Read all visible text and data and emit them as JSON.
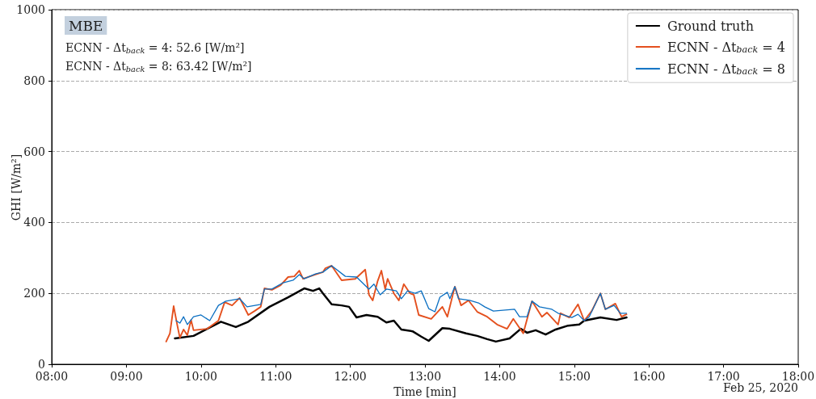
{
  "chart_data": {
    "type": "line",
    "xlabel": "Time [min]",
    "ylabel": "GHI [W/m²]",
    "annotations": [
      "MBE",
      "ECNN - Δt$_{back}$ = 4: 52.6 [W/m²]",
      "ECNN - Δt$_{back}$ = 8: 63.42 [W/m²]",
      "Feb 25, 2020"
    ],
    "xlim": [
      "2020-02-25T08:00",
      "2020-02-25T18:00"
    ],
    "xticks": [
      {
        "value": "2020-02-25T08:00",
        "label": "08:00"
      },
      {
        "value": "2020-02-25T09:00",
        "label": "09:00"
      },
      {
        "value": "2020-02-25T10:00",
        "label": "10:00"
      },
      {
        "value": "2020-02-25T11:00",
        "label": "11:00"
      },
      {
        "value": "2020-02-25T12:00",
        "label": "12:00"
      },
      {
        "value": "2020-02-25T13:00",
        "label": "13:00"
      },
      {
        "value": "2020-02-25T14:00",
        "label": "14:00"
      },
      {
        "value": "2020-02-25T15:00",
        "label": "15:00"
      },
      {
        "value": "2020-02-25T16:00",
        "label": "16:00"
      },
      {
        "value": "2020-02-25T17:00",
        "label": "17:00"
      },
      {
        "value": "2020-02-25T18:00",
        "label": "18:00"
      }
    ],
    "ylim": [
      0,
      1000
    ],
    "yticks": [
      0,
      200,
      400,
      600,
      800,
      1000
    ],
    "grid": "y",
    "legend": "top right",
    "marker": "none",
    "line_style": "solid",
    "series": [
      {
        "name": "Ground truth",
        "color": "#000000",
        "x": [
          "2020-02-25T09:39",
          "2020-02-25T09:54",
          "2020-02-25T10:16",
          "2020-02-25T10:28",
          "2020-02-25T10:38",
          "2020-02-25T10:55",
          "2020-02-25T11:10",
          "2020-02-25T11:23",
          "2020-02-25T11:30",
          "2020-02-25T11:35",
          "2020-02-25T11:38",
          "2020-02-25T11:45",
          "2020-02-25T11:53",
          "2020-02-25T11:59",
          "2020-02-25T12:05",
          "2020-02-25T12:13",
          "2020-02-25T12:22",
          "2020-02-25T12:29",
          "2020-02-25T12:35",
          "2020-02-25T12:41",
          "2020-02-25T12:50",
          "2020-02-25T12:57",
          "2020-02-25T13:03",
          "2020-02-25T13:14",
          "2020-02-25T13:20",
          "2020-02-25T13:33",
          "2020-02-25T13:42",
          "2020-02-25T13:50",
          "2020-02-25T13:57",
          "2020-02-25T14:08",
          "2020-02-25T14:17",
          "2020-02-25T14:22",
          "2020-02-25T14:29",
          "2020-02-25T14:37",
          "2020-02-25T14:45",
          "2020-02-25T14:55",
          "2020-02-25T15:04",
          "2020-02-25T15:08",
          "2020-02-25T15:21",
          "2020-02-25T15:34",
          "2020-02-25T15:42"
        ],
        "values": [
          73,
          80,
          120,
          105,
          120,
          162,
          189,
          214,
          207,
          214,
          200,
          169,
          166,
          162,
          132,
          139,
          134,
          118,
          123,
          98,
          93,
          78,
          66,
          102,
          100,
          87,
          80,
          71,
          64,
          73,
          100,
          89,
          96,
          84,
          98,
          109,
          112,
          123,
          132,
          125,
          132
        ]
      },
      {
        "name": "ECNN - Δt$_{back}$ = 4",
        "color": "#e4501e",
        "x": [
          "2020-02-25T09:32",
          "2020-02-25T09:35",
          "2020-02-25T09:38",
          "2020-02-25T09:41",
          "2020-02-25T09:43",
          "2020-02-25T09:46",
          "2020-02-25T09:49",
          "2020-02-25T09:52",
          "2020-02-25T09:54",
          "2020-02-25T10:05",
          "2020-02-25T10:14",
          "2020-02-25T10:19",
          "2020-02-25T10:25",
          "2020-02-25T10:31",
          "2020-02-25T10:38",
          "2020-02-25T10:43",
          "2020-02-25T10:48",
          "2020-02-25T10:51",
          "2020-02-25T10:57",
          "2020-02-25T11:04",
          "2020-02-25T11:10",
          "2020-02-25T11:15",
          "2020-02-25T11:19",
          "2020-02-25T11:22",
          "2020-02-25T11:32",
          "2020-02-25T11:38",
          "2020-02-25T11:40",
          "2020-02-25T11:45",
          "2020-02-25T11:53",
          "2020-02-25T12:04",
          "2020-02-25T12:12",
          "2020-02-25T12:15",
          "2020-02-25T12:18",
          "2020-02-25T12:22",
          "2020-02-25T12:25",
          "2020-02-25T12:28",
          "2020-02-25T12:30",
          "2020-02-25T12:35",
          "2020-02-25T12:39",
          "2020-02-25T12:43",
          "2020-02-25T12:48",
          "2020-02-25T12:51",
          "2020-02-25T12:55",
          "2020-02-25T13:05",
          "2020-02-25T13:14",
          "2020-02-25T13:18",
          "2020-02-25T13:24",
          "2020-02-25T13:29",
          "2020-02-25T13:35",
          "2020-02-25T13:42",
          "2020-02-25T13:50",
          "2020-02-25T13:58",
          "2020-02-25T14:06",
          "2020-02-25T14:11",
          "2020-02-25T14:19",
          "2020-02-25T14:26",
          "2020-02-25T14:34",
          "2020-02-25T14:38",
          "2020-02-25T14:47",
          "2020-02-25T14:49",
          "2020-02-25T14:56",
          "2020-02-25T15:03",
          "2020-02-25T15:08",
          "2020-02-25T15:14",
          "2020-02-25T15:21",
          "2020-02-25T15:25",
          "2020-02-25T15:33",
          "2020-02-25T15:38",
          "2020-02-25T15:42"
        ],
        "values": [
          64,
          87,
          164,
          109,
          75,
          98,
          82,
          125,
          96,
          100,
          123,
          175,
          166,
          187,
          139,
          150,
          162,
          214,
          210,
          223,
          246,
          248,
          264,
          241,
          253,
          260,
          271,
          278,
          237,
          241,
          267,
          196,
          180,
          235,
          264,
          212,
          241,
          200,
          180,
          226,
          200,
          196,
          139,
          128,
          162,
          134,
          219,
          166,
          180,
          148,
          134,
          112,
          100,
          128,
          87,
          178,
          134,
          146,
          112,
          144,
          132,
          169,
          123,
          150,
          200,
          155,
          171,
          134,
          141
        ]
      },
      {
        "name": "ECNN - Δt$_{back}$ = 8",
        "color": "#0a6fc2",
        "x": [
          "2020-02-25T09:40",
          "2020-02-25T09:43",
          "2020-02-25T09:46",
          "2020-02-25T09:49",
          "2020-02-25T09:54",
          "2020-02-25T10:00",
          "2020-02-25T10:07",
          "2020-02-25T10:14",
          "2020-02-25T10:20",
          "2020-02-25T10:31",
          "2020-02-25T10:37",
          "2020-02-25T10:48",
          "2020-02-25T10:51",
          "2020-02-25T10:57",
          "2020-02-25T11:06",
          "2020-02-25T11:14",
          "2020-02-25T11:19",
          "2020-02-25T11:23",
          "2020-02-25T11:32",
          "2020-02-25T11:38",
          "2020-02-25T11:45",
          "2020-02-25T11:56",
          "2020-02-25T12:05",
          "2020-02-25T12:15",
          "2020-02-25T12:19",
          "2020-02-25T12:24",
          "2020-02-25T12:29",
          "2020-02-25T12:37",
          "2020-02-25T12:41",
          "2020-02-25T12:46",
          "2020-02-25T12:52",
          "2020-02-25T12:57",
          "2020-02-25T13:03",
          "2020-02-25T13:08",
          "2020-02-25T13:12",
          "2020-02-25T13:18",
          "2020-02-25T13:20",
          "2020-02-25T13:24",
          "2020-02-25T13:27",
          "2020-02-25T13:36",
          "2020-02-25T13:43",
          "2020-02-25T13:48",
          "2020-02-25T13:55",
          "2020-02-25T14:12",
          "2020-02-25T14:16",
          "2020-02-25T14:22",
          "2020-02-25T14:26",
          "2020-02-25T14:32",
          "2020-02-25T14:42",
          "2020-02-25T14:47",
          "2020-02-25T14:58",
          "2020-02-25T15:03",
          "2020-02-25T15:08",
          "2020-02-25T15:12",
          "2020-02-25T15:21",
          "2020-02-25T15:25",
          "2020-02-25T15:32",
          "2020-02-25T15:37",
          "2020-02-25T15:42"
        ],
        "values": [
          123,
          116,
          134,
          112,
          134,
          139,
          123,
          166,
          178,
          185,
          162,
          169,
          212,
          212,
          230,
          237,
          253,
          241,
          255,
          260,
          278,
          248,
          246,
          212,
          226,
          196,
          212,
          207,
          185,
          207,
          200,
          207,
          157,
          148,
          189,
          203,
          185,
          219,
          185,
          180,
          173,
          162,
          150,
          155,
          134,
          134,
          178,
          162,
          155,
          144,
          132,
          141,
          123,
          134,
          200,
          155,
          166,
          144,
          144
        ]
      }
    ]
  }
}
